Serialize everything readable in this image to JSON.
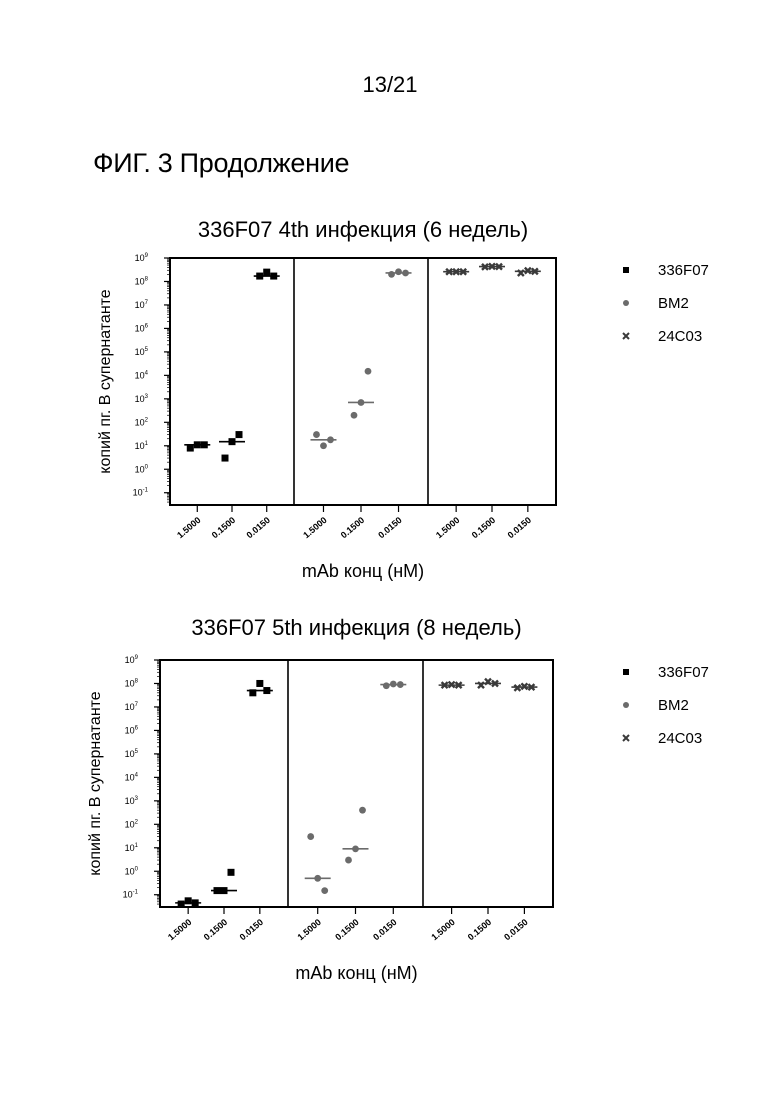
{
  "page": {
    "number": "13/21",
    "figure_title": "ФИГ. 3 Продолжение"
  },
  "chart_data": [
    {
      "type": "scatter",
      "title": "336F07 4th инфекция (6 недель)",
      "xlabel": "mAb конц (нМ)",
      "ylabel": "копий пг. В супернатанте",
      "yscale": "log",
      "ylim": [
        0.03,
        1000000000
      ],
      "yticks": [
        {
          "base": "10",
          "exp": "9"
        },
        {
          "base": "10",
          "exp": "8"
        },
        {
          "base": "10",
          "exp": "7"
        },
        {
          "base": "10",
          "exp": "6"
        },
        {
          "base": "10",
          "exp": "5"
        },
        {
          "base": "10",
          "exp": "4"
        },
        {
          "base": "10",
          "exp": "3"
        },
        {
          "base": "10",
          "exp": "2"
        },
        {
          "base": "10",
          "exp": "1"
        },
        {
          "base": "10",
          "exp": "0"
        },
        {
          "base": "10",
          "exp": "-1"
        }
      ],
      "categories": [
        "1.5000",
        "0.1500",
        "0.0150"
      ],
      "legend": {
        "position": "right",
        "entries": [
          "336F07",
          "BM2",
          "24C03"
        ]
      },
      "groups": [
        {
          "series": "336F07",
          "color": "#000000",
          "marker": "square",
          "points": [
            [
              8,
              11,
              11
            ],
            [
              3,
              15,
              30
            ],
            [
              170000000,
              250000000,
              170000000
            ]
          ],
          "medians": [
            11,
            15,
            170000000
          ]
        },
        {
          "series": "BM2",
          "color": "#6b6b6b",
          "marker": "circle",
          "points": [
            [
              30,
              10,
              18
            ],
            [
              200,
              700,
              15000
            ],
            [
              200000000,
              260000000,
              230000000
            ]
          ],
          "medians": [
            18,
            700,
            230000000
          ]
        },
        {
          "series": "24C03",
          "color": "#3a3a3a",
          "marker": "x",
          "points": [
            [
              260000000,
              260000000,
              260000000
            ],
            [
              420000000,
              440000000,
              430000000
            ],
            [
              230000000,
              290000000,
              270000000
            ]
          ],
          "medians": [
            260000000,
            430000000,
            270000000
          ]
        }
      ]
    },
    {
      "type": "scatter",
      "title": "336F07 5th инфекция (8 недель)",
      "xlabel": "mAb конц (нМ)",
      "ylabel": "копий пг. В супернатанте",
      "yscale": "log",
      "ylim": [
        0.03,
        1000000000
      ],
      "yticks": [
        {
          "base": "10",
          "exp": "9"
        },
        {
          "base": "10",
          "exp": "8"
        },
        {
          "base": "10",
          "exp": "7"
        },
        {
          "base": "10",
          "exp": "6"
        },
        {
          "base": "10",
          "exp": "5"
        },
        {
          "base": "10",
          "exp": "4"
        },
        {
          "base": "10",
          "exp": "3"
        },
        {
          "base": "10",
          "exp": "2"
        },
        {
          "base": "10",
          "exp": "1"
        },
        {
          "base": "10",
          "exp": "0"
        },
        {
          "base": "10",
          "exp": "-1"
        }
      ],
      "categories": [
        "1.5000",
        "0.1500",
        "0.0150"
      ],
      "legend": {
        "position": "right",
        "entries": [
          "336F07",
          "BM2",
          "24C03"
        ]
      },
      "groups": [
        {
          "series": "336F07",
          "color": "#000000",
          "marker": "square",
          "points": [
            [
              0.04,
              0.055,
              0.045
            ],
            [
              0.15,
              0.15,
              0.9
            ],
            [
              40000000,
              100000000,
              50000000
            ]
          ],
          "medians": [
            0.045,
            0.15,
            50000000
          ]
        },
        {
          "series": "BM2",
          "color": "#6b6b6b",
          "marker": "circle",
          "points": [
            [
              30,
              0.5,
              0.15
            ],
            [
              3,
              9,
              400
            ],
            [
              80000000,
              95000000,
              90000000
            ]
          ],
          "medians": [
            0.5,
            9,
            90000000
          ]
        },
        {
          "series": "24C03",
          "color": "#3a3a3a",
          "marker": "x",
          "points": [
            [
              85000000,
              90000000,
              85000000
            ],
            [
              85000000,
              120000000,
              100000000
            ],
            [
              65000000,
              75000000,
              70000000
            ]
          ],
          "medians": [
            85000000,
            100000000,
            70000000
          ]
        }
      ]
    }
  ]
}
